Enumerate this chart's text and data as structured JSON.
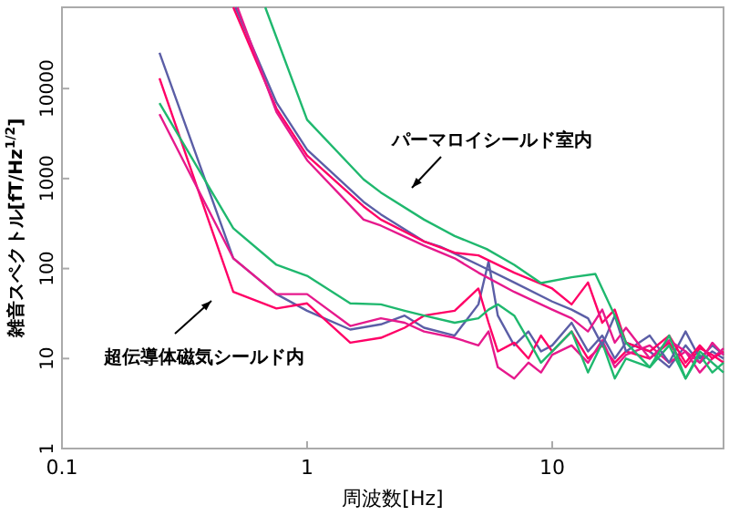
{
  "chart_data": {
    "type": "line",
    "xlabel": "周波数[Hz]",
    "ylabel": "雑音スペクトル[fT/Hz$^{1/2}$]",
    "log": "xy",
    "xlim": [
      0.1,
      50
    ],
    "ylim": [
      1,
      80000
    ],
    "xticks": [
      0.1,
      1,
      10
    ],
    "yticks": [
      1,
      10,
      100,
      1000,
      10000
    ],
    "grid": false,
    "line_style": "solid",
    "marker": "none",
    "annotations": [
      "パーマロイシールド室内",
      "超伝導体磁気シールド内"
    ],
    "series": [
      {
        "color": "#5b5ea6",
        "x": [
          0.25,
          0.5,
          0.75,
          1,
          1.5,
          2,
          2.5,
          3,
          4,
          5,
          5.5,
          6,
          7,
          8,
          9,
          10,
          12,
          14,
          16,
          18,
          20,
          25,
          30,
          35,
          40,
          45,
          50
        ],
        "values": [
          25000,
          130,
          52,
          34,
          21,
          24,
          30,
          22,
          18,
          40,
          120,
          30,
          14,
          20,
          12,
          14,
          25,
          12,
          18,
          10,
          15,
          12,
          8,
          14,
          9,
          12,
          10
        ]
      },
      {
        "color": "#ff0066",
        "x": [
          0.25,
          0.5,
          0.75,
          1,
          1.5,
          2,
          2.5,
          3,
          4,
          5,
          5.5,
          6,
          7,
          8,
          9,
          10,
          12,
          14,
          16,
          18,
          20,
          25,
          30,
          35,
          40,
          45,
          50
        ],
        "values": [
          13000,
          55,
          36,
          41,
          15,
          17,
          22,
          30,
          34,
          60,
          25,
          12,
          15,
          10,
          18,
          12,
          20,
          10,
          14,
          9,
          12,
          10,
          15,
          8,
          13,
          11,
          9
        ]
      },
      {
        "color": "#e6198c",
        "x": [
          0.25,
          0.5,
          0.75,
          1,
          1.5,
          2,
          2.5,
          3,
          4,
          5,
          5.5,
          6,
          7,
          8,
          9,
          10,
          12,
          14,
          16,
          18,
          20,
          25,
          30,
          35,
          40,
          45,
          50
        ],
        "values": [
          5200,
          130,
          52,
          52,
          23,
          28,
          25,
          20,
          17,
          14,
          20,
          8,
          6,
          9,
          7,
          11,
          14,
          9,
          16,
          8,
          11,
          14,
          9,
          12,
          7,
          10,
          13
        ]
      },
      {
        "color": "#1fb86e",
        "x": [
          0.25,
          0.5,
          0.75,
          1,
          1.5,
          2,
          2.5,
          3,
          4,
          5,
          5.5,
          6,
          7,
          8,
          9,
          10,
          12,
          14,
          16,
          18,
          20,
          25,
          30,
          35,
          40,
          45,
          50
        ],
        "values": [
          6900,
          280,
          110,
          83,
          41,
          40,
          34,
          30,
          25,
          28,
          35,
          40,
          30,
          16,
          9,
          12,
          20,
          7,
          15,
          6,
          10,
          8,
          14,
          6,
          11,
          7,
          9
        ]
      },
      {
        "color": "#5b5ea6",
        "x": [
          0.51,
          0.75,
          1,
          1.7,
          2,
          3,
          3.5,
          5,
          7,
          10,
          12,
          14,
          16,
          18,
          20,
          25,
          30,
          35,
          40,
          45,
          50
        ],
        "values": [
          80000,
          7000,
          2100,
          550,
          400,
          200,
          175,
          110,
          70,
          43,
          35,
          28,
          14,
          30,
          12,
          18,
          9,
          20,
          10,
          14,
          11
        ]
      },
      {
        "color": "#ff0066",
        "x": [
          0.5,
          0.75,
          1,
          1.7,
          2,
          3,
          4,
          5,
          7,
          10,
          12,
          14,
          16,
          18,
          20,
          25,
          30,
          35,
          40,
          45,
          50
        ],
        "values": [
          80000,
          6000,
          1800,
          490,
          350,
          200,
          150,
          140,
          90,
          60,
          40,
          70,
          25,
          35,
          15,
          12,
          18,
          9,
          14,
          10,
          12
        ]
      },
      {
        "color": "#e6198c",
        "x": [
          0.52,
          0.75,
          1,
          1.7,
          2,
          3,
          4,
          5,
          7,
          10,
          12,
          14,
          16,
          18,
          20,
          25,
          30,
          35,
          40,
          45,
          50
        ],
        "values": [
          80000,
          5500,
          1600,
          350,
          300,
          180,
          130,
          90,
          55,
          35,
          28,
          20,
          35,
          15,
          22,
          10,
          16,
          12,
          9,
          15,
          11
        ]
      },
      {
        "color": "#1fb86e",
        "x": [
          0.675,
          1,
          1.7,
          2,
          3,
          4,
          5.4,
          7,
          9,
          12,
          15,
          18,
          20,
          25,
          30,
          35,
          40,
          45,
          50
        ],
        "values": [
          80000,
          4500,
          980,
          700,
          350,
          230,
          165,
          110,
          69,
          80,
          87,
          30,
          15,
          8,
          18,
          6,
          12,
          9,
          7
        ]
      }
    ]
  }
}
